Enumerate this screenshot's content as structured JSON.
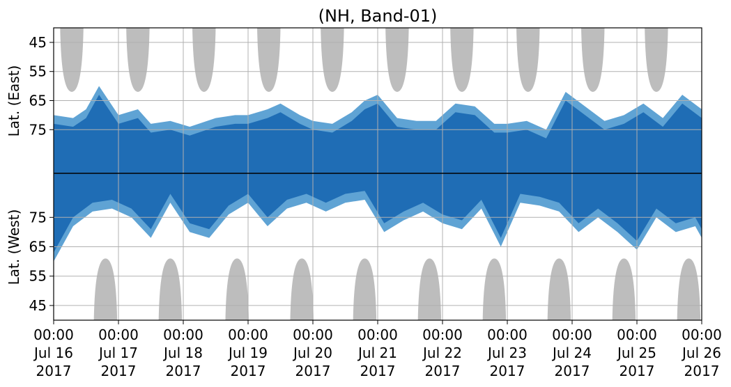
{
  "chart_data": {
    "type": "heatmap",
    "title": "(NH, Band-01)",
    "ylabel_top": "Lat. (East)",
    "ylabel_bottom": "Lat. (West)",
    "y_ticks_east": [
      "45",
      "55",
      "65",
      "75"
    ],
    "y_ticks_west": [
      "75",
      "65",
      "55",
      "45"
    ],
    "y_tick_values_east": [
      45,
      55,
      65,
      75
    ],
    "y_tick_values_west": [
      75,
      65,
      55,
      45
    ],
    "y_axis_latitude_limit": 90,
    "y_axis_outer_limit": 40,
    "x_ticks": [
      {
        "time": "00:00",
        "date": "Jul 16",
        "year": "2017"
      },
      {
        "time": "00:00",
        "date": "Jul 17",
        "year": "2017"
      },
      {
        "time": "00:00",
        "date": "Jul 18",
        "year": "2017"
      },
      {
        "time": "00:00",
        "date": "Jul 19",
        "year": "2017"
      },
      {
        "time": "00:00",
        "date": "Jul 20",
        "year": "2017"
      },
      {
        "time": "00:00",
        "date": "Jul 21",
        "year": "2017"
      },
      {
        "time": "00:00",
        "date": "Jul 22",
        "year": "2017"
      },
      {
        "time": "00:00",
        "date": "Jul 23",
        "year": "2017"
      },
      {
        "time": "00:00",
        "date": "Jul 24",
        "year": "2017"
      },
      {
        "time": "00:00",
        "date": "Jul 25",
        "year": "2017"
      },
      {
        "time": "00:00",
        "date": "Jul 26",
        "year": "2017"
      }
    ],
    "grid": true,
    "colors": {
      "dense": "#1f6db5",
      "sparse": "#5fa3d4",
      "night": "#bdbdbd",
      "grid": "#b0b0b0",
      "axis": "#000000"
    },
    "series": [
      {
        "name": "grey-night-east",
        "centers_day": [
          0.28,
          1.3,
          2.32,
          3.32,
          4.3,
          5.3,
          6.3,
          7.32,
          8.32,
          9.3,
          10.3
        ],
        "lat_edge": 62,
        "width_day": 0.36
      },
      {
        "name": "grey-night-west",
        "centers_day": [
          0.8,
          1.8,
          2.83,
          3.83,
          4.8,
          5.8,
          6.8,
          7.8,
          8.8,
          9.8,
          10.8
        ],
        "lat_edge": 61,
        "width_day": 0.36
      },
      {
        "name": "coverage-east-extent",
        "day": [
          0,
          0.3,
          0.5,
          0.7,
          1.0,
          1.3,
          1.5,
          1.8,
          2.1,
          2.5,
          2.8,
          3.0,
          3.3,
          3.5,
          3.8,
          4.0,
          4.3,
          4.6,
          4.8,
          5.0,
          5.3,
          5.6,
          5.9,
          6.2,
          6.5,
          6.8,
          7.0,
          7.3,
          7.6,
          7.9,
          8.2,
          8.5,
          8.8,
          9.1,
          9.4,
          9.7,
          10.0
        ],
        "lat_min": [
          70,
          71,
          68,
          60,
          70,
          68,
          73,
          72,
          74,
          71,
          70,
          70,
          68,
          66,
          70,
          72,
          73,
          69,
          65,
          63,
          71,
          72,
          72,
          66,
          67,
          73,
          73,
          72,
          75,
          62,
          67,
          72,
          70,
          66,
          71,
          63,
          68
        ]
      },
      {
        "name": "coverage-west-extent",
        "day": [
          0,
          0.3,
          0.6,
          0.9,
          1.2,
          1.5,
          1.8,
          2.1,
          2.4,
          2.7,
          3.0,
          3.3,
          3.6,
          3.9,
          4.2,
          4.5,
          4.8,
          5.1,
          5.4,
          5.7,
          6.0,
          6.3,
          6.6,
          6.9,
          7.2,
          7.5,
          7.8,
          8.1,
          8.4,
          8.7,
          9.0,
          9.3,
          9.6,
          9.9,
          10.0
        ],
        "lat_min": [
          60,
          72,
          77,
          78,
          75,
          68,
          80,
          70,
          68,
          76,
          80,
          72,
          78,
          80,
          77,
          80,
          81,
          70,
          74,
          77,
          73,
          71,
          78,
          65,
          80,
          79,
          77,
          70,
          75,
          70,
          64,
          75,
          70,
          72,
          68
        ]
      }
    ]
  }
}
